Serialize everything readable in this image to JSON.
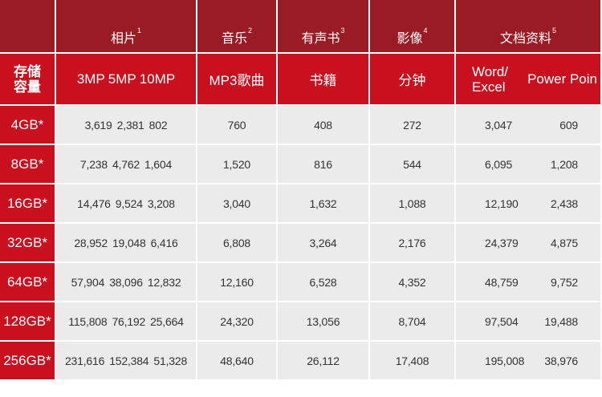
{
  "table": {
    "header_top": [
      {
        "label": "相片",
        "note": "1"
      },
      {
        "label": "音乐",
        "note": "2"
      },
      {
        "label": "有声书",
        "note": "3"
      },
      {
        "label": "影像",
        "note": "4"
      },
      {
        "label": "文档资料",
        "note": "5"
      }
    ],
    "row_header_label": "存储\n容量",
    "subheaders": {
      "photos": [
        "3MP",
        "5MP",
        "10MP"
      ],
      "music": "MP3歌曲",
      "audiobooks": "书籍",
      "video": "分钟",
      "docs_word": "Word/\nExcel",
      "docs_ppt": "Power Poin"
    },
    "rows": [
      {
        "capacity": "4GB*",
        "photos": [
          "3,619",
          "2,381",
          "802"
        ],
        "music": "760",
        "audiobooks": "408",
        "video": "272",
        "docs": [
          "3,047",
          "609"
        ]
      },
      {
        "capacity": "8GB*",
        "photos": [
          "7,238",
          "4,762",
          "1,604"
        ],
        "music": "1,520",
        "audiobooks": "816",
        "video": "544",
        "docs": [
          "6,095",
          "1,208"
        ]
      },
      {
        "capacity": "16GB*",
        "photos": [
          "14,476",
          "9,524",
          "3,208"
        ],
        "music": "3,040",
        "audiobooks": "1,632",
        "video": "1,088",
        "docs": [
          "12,190",
          "2,438"
        ]
      },
      {
        "capacity": "32GB*",
        "photos": [
          "28,952",
          "19,048",
          "6,416"
        ],
        "music": "6,808",
        "audiobooks": "3,264",
        "video": "2,176",
        "docs": [
          "24,379",
          "4,875"
        ]
      },
      {
        "capacity": "64GB*",
        "photos": [
          "57,904",
          "38,096",
          "12,832"
        ],
        "music": "12,160",
        "audiobooks": "6,528",
        "video": "4,352",
        "docs": [
          "48,759",
          "9,752"
        ]
      },
      {
        "capacity": "128GB*",
        "photos": [
          "115,808",
          "76,192",
          "25,664"
        ],
        "music": "24,320",
        "audiobooks": "13,056",
        "video": "8,704",
        "docs": [
          "97,504",
          "19,488"
        ]
      },
      {
        "capacity": "256GB*",
        "photos": [
          "231,616",
          "152,384",
          "51,328"
        ],
        "music": "48,640",
        "audiobooks": "26,112",
        "video": "17,408",
        "docs": [
          "195,008",
          "38,976"
        ]
      }
    ]
  },
  "colors": {
    "header_dark": "#9a1b24",
    "header_red": "#c8101e",
    "cell_bg": "#ebebeb",
    "cell_text": "#333333"
  }
}
